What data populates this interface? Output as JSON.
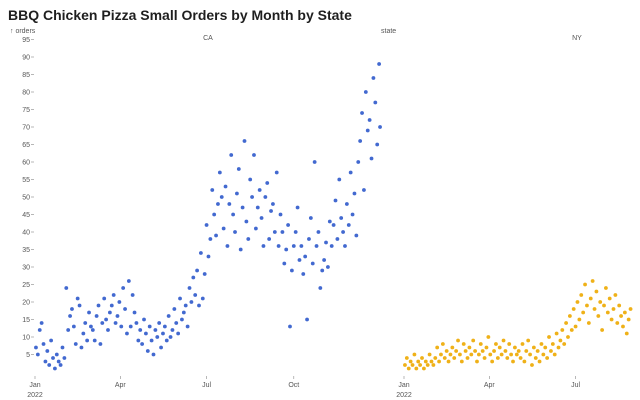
{
  "title": "BBQ Chicken Pizza Small Orders by Month by State",
  "chart_data": {
    "type": "scatter",
    "title": "BBQ Chicken Pizza Small Orders by Month by State",
    "ylabel": "orders",
    "facet_label": "state",
    "ylim": [
      0,
      100
    ],
    "y_ticks": [
      5,
      10,
      15,
      20,
      25,
      30,
      35,
      40,
      45,
      50,
      55,
      60,
      65,
      70,
      75,
      80,
      85,
      90,
      95
    ],
    "x_range_days": [
      0,
      365
    ],
    "x_ticks": [
      {
        "day": 0,
        "label": "Jan",
        "sublabel": "2022"
      },
      {
        "day": 90,
        "label": "Apr",
        "sublabel": ""
      },
      {
        "day": 181,
        "label": "Jul",
        "sublabel": ""
      },
      {
        "day": 273,
        "label": "Oct",
        "sublabel": ""
      }
    ],
    "facets": [
      {
        "name": "CA",
        "color": "#4269d0",
        "points": [
          [
            1,
            7
          ],
          [
            3,
            5
          ],
          [
            5,
            12
          ],
          [
            7,
            14
          ],
          [
            9,
            8
          ],
          [
            11,
            3
          ],
          [
            13,
            6
          ],
          [
            15,
            2
          ],
          [
            17,
            9
          ],
          [
            19,
            4
          ],
          [
            21,
            1
          ],
          [
            23,
            5
          ],
          [
            25,
            3
          ],
          [
            27,
            2
          ],
          [
            29,
            7
          ],
          [
            31,
            4
          ],
          [
            33,
            24
          ],
          [
            35,
            12
          ],
          [
            37,
            16
          ],
          [
            39,
            18
          ],
          [
            41,
            13
          ],
          [
            43,
            8
          ],
          [
            45,
            21
          ],
          [
            47,
            19
          ],
          [
            49,
            7
          ],
          [
            51,
            11
          ],
          [
            53,
            14
          ],
          [
            55,
            9
          ],
          [
            57,
            17
          ],
          [
            59,
            13
          ],
          [
            61,
            12
          ],
          [
            63,
            9
          ],
          [
            65,
            16
          ],
          [
            67,
            19
          ],
          [
            69,
            8
          ],
          [
            71,
            14
          ],
          [
            73,
            21
          ],
          [
            75,
            15
          ],
          [
            77,
            12
          ],
          [
            79,
            17
          ],
          [
            81,
            19
          ],
          [
            83,
            22
          ],
          [
            85,
            14
          ],
          [
            87,
            16
          ],
          [
            89,
            20
          ],
          [
            91,
            13
          ],
          [
            93,
            24
          ],
          [
            95,
            18
          ],
          [
            97,
            11
          ],
          [
            99,
            26
          ],
          [
            101,
            13
          ],
          [
            103,
            22
          ],
          [
            105,
            17
          ],
          [
            107,
            14
          ],
          [
            109,
            9
          ],
          [
            111,
            12
          ],
          [
            113,
            8
          ],
          [
            115,
            15
          ],
          [
            117,
            11
          ],
          [
            119,
            6
          ],
          [
            121,
            13
          ],
          [
            123,
            9
          ],
          [
            125,
            5
          ],
          [
            127,
            12
          ],
          [
            129,
            10
          ],
          [
            131,
            14
          ],
          [
            133,
            7
          ],
          [
            135,
            11
          ],
          [
            137,
            13
          ],
          [
            139,
            9
          ],
          [
            141,
            16
          ],
          [
            143,
            10
          ],
          [
            145,
            12
          ],
          [
            147,
            18
          ],
          [
            149,
            14
          ],
          [
            151,
            11
          ],
          [
            153,
            21
          ],
          [
            155,
            15
          ],
          [
            157,
            17
          ],
          [
            159,
            19
          ],
          [
            161,
            13
          ],
          [
            163,
            24
          ],
          [
            165,
            20
          ],
          [
            167,
            27
          ],
          [
            169,
            22
          ],
          [
            171,
            29
          ],
          [
            173,
            19
          ],
          [
            175,
            34
          ],
          [
            177,
            21
          ],
          [
            179,
            28
          ],
          [
            181,
            42
          ],
          [
            183,
            33
          ],
          [
            185,
            38
          ],
          [
            187,
            52
          ],
          [
            189,
            45
          ],
          [
            191,
            39
          ],
          [
            193,
            48
          ],
          [
            195,
            57
          ],
          [
            197,
            50
          ],
          [
            199,
            41
          ],
          [
            201,
            53
          ],
          [
            203,
            36
          ],
          [
            205,
            48
          ],
          [
            207,
            62
          ],
          [
            209,
            45
          ],
          [
            211,
            40
          ],
          [
            213,
            51
          ],
          [
            215,
            58
          ],
          [
            217,
            35
          ],
          [
            219,
            47
          ],
          [
            221,
            66
          ],
          [
            223,
            43
          ],
          [
            225,
            38
          ],
          [
            227,
            55
          ],
          [
            229,
            50
          ],
          [
            231,
            62
          ],
          [
            233,
            41
          ],
          [
            235,
            47
          ],
          [
            237,
            52
          ],
          [
            239,
            44
          ],
          [
            241,
            36
          ],
          [
            243,
            50
          ],
          [
            245,
            54
          ],
          [
            247,
            38
          ],
          [
            249,
            46
          ],
          [
            251,
            48
          ],
          [
            253,
            40
          ],
          [
            255,
            57
          ],
          [
            257,
            36
          ],
          [
            259,
            45
          ],
          [
            261,
            40
          ],
          [
            263,
            31
          ],
          [
            265,
            35
          ],
          [
            267,
            42
          ],
          [
            269,
            13
          ],
          [
            271,
            29
          ],
          [
            273,
            36
          ],
          [
            275,
            40
          ],
          [
            277,
            47
          ],
          [
            279,
            32
          ],
          [
            281,
            36
          ],
          [
            283,
            28
          ],
          [
            285,
            33
          ],
          [
            287,
            15
          ],
          [
            289,
            38
          ],
          [
            291,
            44
          ],
          [
            293,
            31
          ],
          [
            295,
            60
          ],
          [
            297,
            36
          ],
          [
            299,
            40
          ],
          [
            301,
            24
          ],
          [
            303,
            29
          ],
          [
            305,
            32
          ],
          [
            307,
            37
          ],
          [
            309,
            30
          ],
          [
            311,
            43
          ],
          [
            313,
            36
          ],
          [
            315,
            42
          ],
          [
            317,
            49
          ],
          [
            319,
            38
          ],
          [
            321,
            55
          ],
          [
            323,
            44
          ],
          [
            325,
            40
          ],
          [
            327,
            36
          ],
          [
            329,
            48
          ],
          [
            331,
            42
          ],
          [
            333,
            57
          ],
          [
            335,
            45
          ],
          [
            337,
            51
          ],
          [
            339,
            39
          ],
          [
            341,
            60
          ],
          [
            343,
            66
          ],
          [
            345,
            74
          ],
          [
            347,
            52
          ],
          [
            349,
            80
          ],
          [
            351,
            69
          ],
          [
            353,
            72
          ],
          [
            355,
            61
          ],
          [
            357,
            84
          ],
          [
            359,
            77
          ],
          [
            361,
            65
          ],
          [
            363,
            88
          ],
          [
            364,
            70
          ]
        ]
      },
      {
        "name": "NY",
        "color": "#efb118",
        "points": [
          [
            1,
            2
          ],
          [
            3,
            4
          ],
          [
            5,
            1
          ],
          [
            7,
            3
          ],
          [
            9,
            2
          ],
          [
            11,
            5
          ],
          [
            13,
            1
          ],
          [
            15,
            3
          ],
          [
            17,
            2
          ],
          [
            19,
            4
          ],
          [
            21,
            1
          ],
          [
            23,
            3
          ],
          [
            25,
            2
          ],
          [
            27,
            5
          ],
          [
            29,
            3
          ],
          [
            31,
            2
          ],
          [
            33,
            4
          ],
          [
            35,
            7
          ],
          [
            37,
            3
          ],
          [
            39,
            5
          ],
          [
            41,
            8
          ],
          [
            43,
            4
          ],
          [
            45,
            6
          ],
          [
            47,
            3
          ],
          [
            49,
            5
          ],
          [
            51,
            7
          ],
          [
            53,
            4
          ],
          [
            55,
            6
          ],
          [
            57,
            9
          ],
          [
            59,
            5
          ],
          [
            61,
            3
          ],
          [
            63,
            8
          ],
          [
            65,
            6
          ],
          [
            67,
            4
          ],
          [
            69,
            7
          ],
          [
            71,
            5
          ],
          [
            73,
            9
          ],
          [
            75,
            6
          ],
          [
            77,
            3
          ],
          [
            79,
            5
          ],
          [
            81,
            8
          ],
          [
            83,
            6
          ],
          [
            85,
            4
          ],
          [
            87,
            7
          ],
          [
            89,
            10
          ],
          [
            91,
            5
          ],
          [
            93,
            3
          ],
          [
            95,
            6
          ],
          [
            97,
            8
          ],
          [
            99,
            4
          ],
          [
            101,
            7
          ],
          [
            103,
            5
          ],
          [
            105,
            9
          ],
          [
            107,
            6
          ],
          [
            109,
            4
          ],
          [
            111,
            8
          ],
          [
            113,
            5
          ],
          [
            115,
            3
          ],
          [
            117,
            7
          ],
          [
            119,
            5
          ],
          [
            121,
            6
          ],
          [
            123,
            4
          ],
          [
            125,
            8
          ],
          [
            127,
            3
          ],
          [
            129,
            6
          ],
          [
            131,
            9
          ],
          [
            133,
            5
          ],
          [
            135,
            2
          ],
          [
            137,
            7
          ],
          [
            139,
            4
          ],
          [
            141,
            6
          ],
          [
            143,
            3
          ],
          [
            145,
            8
          ],
          [
            147,
            5
          ],
          [
            149,
            7
          ],
          [
            151,
            4
          ],
          [
            153,
            10
          ],
          [
            155,
            6
          ],
          [
            157,
            8
          ],
          [
            159,
            5
          ],
          [
            161,
            11
          ],
          [
            163,
            7
          ],
          [
            165,
            9
          ],
          [
            167,
            12
          ],
          [
            169,
            8
          ],
          [
            171,
            14
          ],
          [
            173,
            10
          ],
          [
            175,
            16
          ],
          [
            177,
            12
          ],
          [
            179,
            18
          ],
          [
            181,
            13
          ],
          [
            183,
            20
          ],
          [
            185,
            15
          ],
          [
            187,
            22
          ],
          [
            189,
            17
          ],
          [
            191,
            25
          ],
          [
            193,
            19
          ],
          [
            195,
            14
          ],
          [
            197,
            21
          ],
          [
            199,
            26
          ],
          [
            201,
            18
          ],
          [
            203,
            23
          ],
          [
            205,
            16
          ],
          [
            207,
            20
          ],
          [
            209,
            12
          ],
          [
            211,
            19
          ],
          [
            213,
            24
          ],
          [
            215,
            17
          ],
          [
            217,
            21
          ],
          [
            219,
            15
          ],
          [
            221,
            18
          ],
          [
            223,
            22
          ],
          [
            225,
            14
          ],
          [
            227,
            19
          ],
          [
            229,
            16
          ],
          [
            231,
            13
          ],
          [
            233,
            17
          ],
          [
            235,
            11
          ],
          [
            237,
            15
          ],
          [
            239,
            18
          ]
        ]
      }
    ]
  }
}
